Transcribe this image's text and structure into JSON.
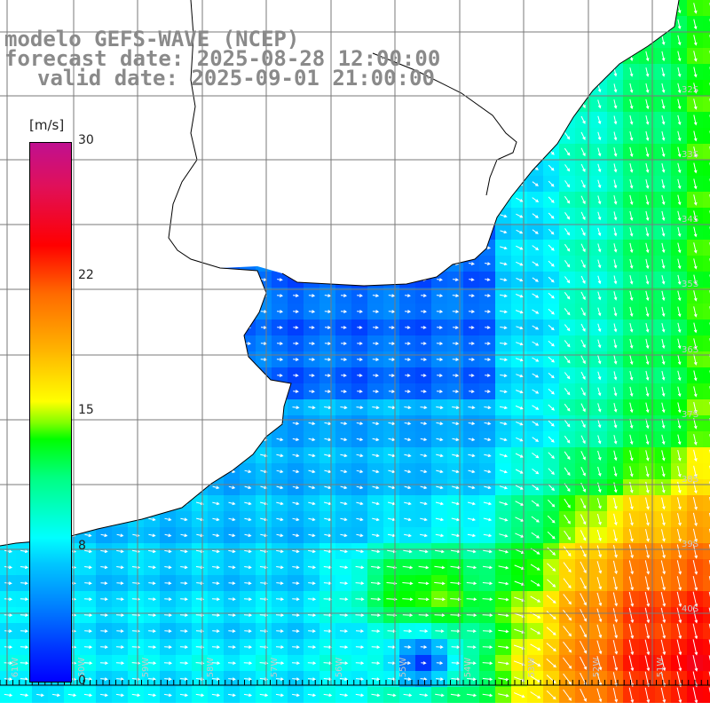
{
  "title": {
    "line1": "modelo GEFS-WAVE (NCEP)",
    "line2": "forecast date: 2025-08-28 12:00:00",
    "line3": "valid date: 2025-09-01 21:00:00"
  },
  "colorbar": {
    "unit": "[m/s]",
    "ticks": [
      "30",
      "22",
      "15",
      "8",
      "0"
    ],
    "tick_values": [
      30,
      22,
      15,
      8,
      0
    ],
    "range": [
      0,
      30
    ],
    "colors": [
      "#0000ff",
      "#0080ff",
      "#00ffff",
      "#00ff00",
      "#ffff00",
      "#ff6a00",
      "#ff0000",
      "#c01090"
    ]
  },
  "map": {
    "lat_labels": [
      "32S",
      "33S",
      "34S",
      "35S",
      "36S",
      "37S",
      "38S",
      "39S",
      "40S"
    ],
    "lon_labels": [
      "61W",
      "60W",
      "59W",
      "58W",
      "57W",
      "56W",
      "55W",
      "54W",
      "53W",
      "52W",
      "51W"
    ],
    "land_color": "#ffffff",
    "grid_color": "#7a7a7a"
  }
}
